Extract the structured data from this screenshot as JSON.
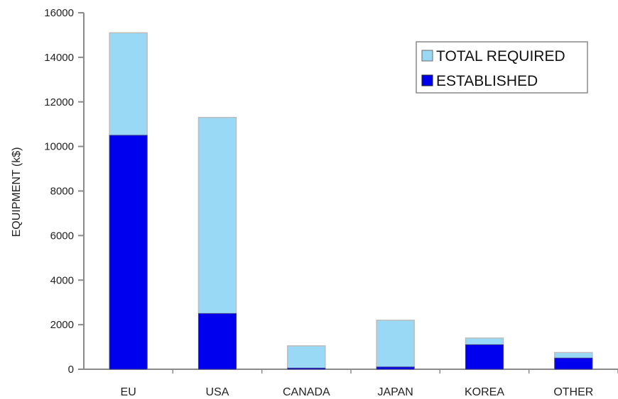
{
  "chart_data": {
    "type": "bar",
    "stacked": false,
    "overlapping": true,
    "categories": [
      "EU",
      "USA",
      "CANADA",
      "JAPAN",
      "KOREA",
      "OTHER"
    ],
    "series": [
      {
        "name": "TOTAL REQUIRED",
        "values": [
          15100,
          11300,
          1050,
          2200,
          1400,
          750
        ],
        "color": "#99d9f5"
      },
      {
        "name": "ESTABLISHED",
        "values": [
          10500,
          2500,
          50,
          100,
          1100,
          500
        ],
        "color": "#0000ee"
      }
    ],
    "title": "",
    "xlabel": "",
    "ylabel": "EQUIPMENT (k$)",
    "ylim": [
      0,
      16000
    ],
    "yticks": [
      0,
      2000,
      4000,
      6000,
      8000,
      10000,
      12000,
      14000,
      16000
    ],
    "ytick_labels": [
      "0",
      "2000",
      "4000",
      "6000",
      "8000",
      "10000",
      "12000",
      "14000",
      "16000"
    ],
    "grid": false,
    "legend_position": "top-right",
    "legend_order": [
      "TOTAL REQUIRED",
      "ESTABLISHED"
    ]
  }
}
